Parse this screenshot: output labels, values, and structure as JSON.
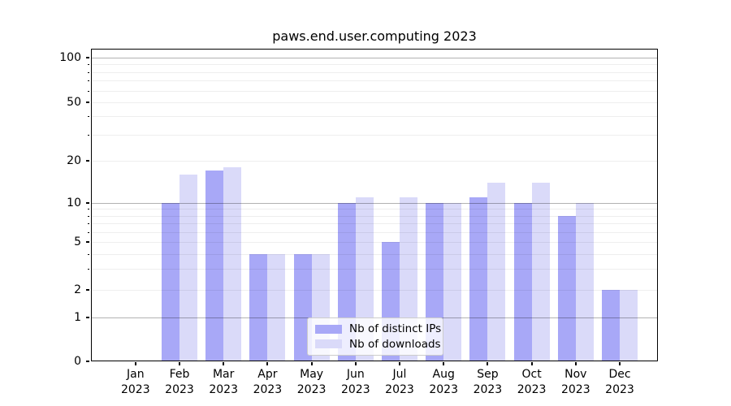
{
  "chart_data": {
    "type": "bar",
    "title": "paws.end.user.computing 2023",
    "yscale": "symlog",
    "grid": "horizontal",
    "legend_position": "lower center",
    "ylim": [
      0,
      115
    ],
    "y_ticks": [
      0,
      1,
      2,
      5,
      10,
      20,
      50,
      100
    ],
    "y_major_gridlines": [
      1,
      10,
      100
    ],
    "y_minor_gridlines": [
      2,
      3,
      4,
      5,
      6,
      7,
      8,
      9,
      20,
      30,
      40,
      50,
      60,
      70,
      80,
      90
    ],
    "categories": [
      "Jan",
      "Feb",
      "Mar",
      "Apr",
      "May",
      "Jun",
      "Jul",
      "Aug",
      "Sep",
      "Oct",
      "Nov",
      "Dec"
    ],
    "category_year": "2023",
    "series": [
      {
        "name": "Nb of distinct IPs",
        "color": "#a8a8f7",
        "values": [
          0,
          10,
          17,
          4,
          4,
          10,
          5,
          10,
          11,
          10,
          8,
          2
        ]
      },
      {
        "name": "Nb of downloads",
        "color": "#dadaf9",
        "values": [
          0,
          16,
          18,
          4,
          4,
          11,
          11,
          10,
          14,
          14,
          10,
          2
        ]
      }
    ]
  }
}
